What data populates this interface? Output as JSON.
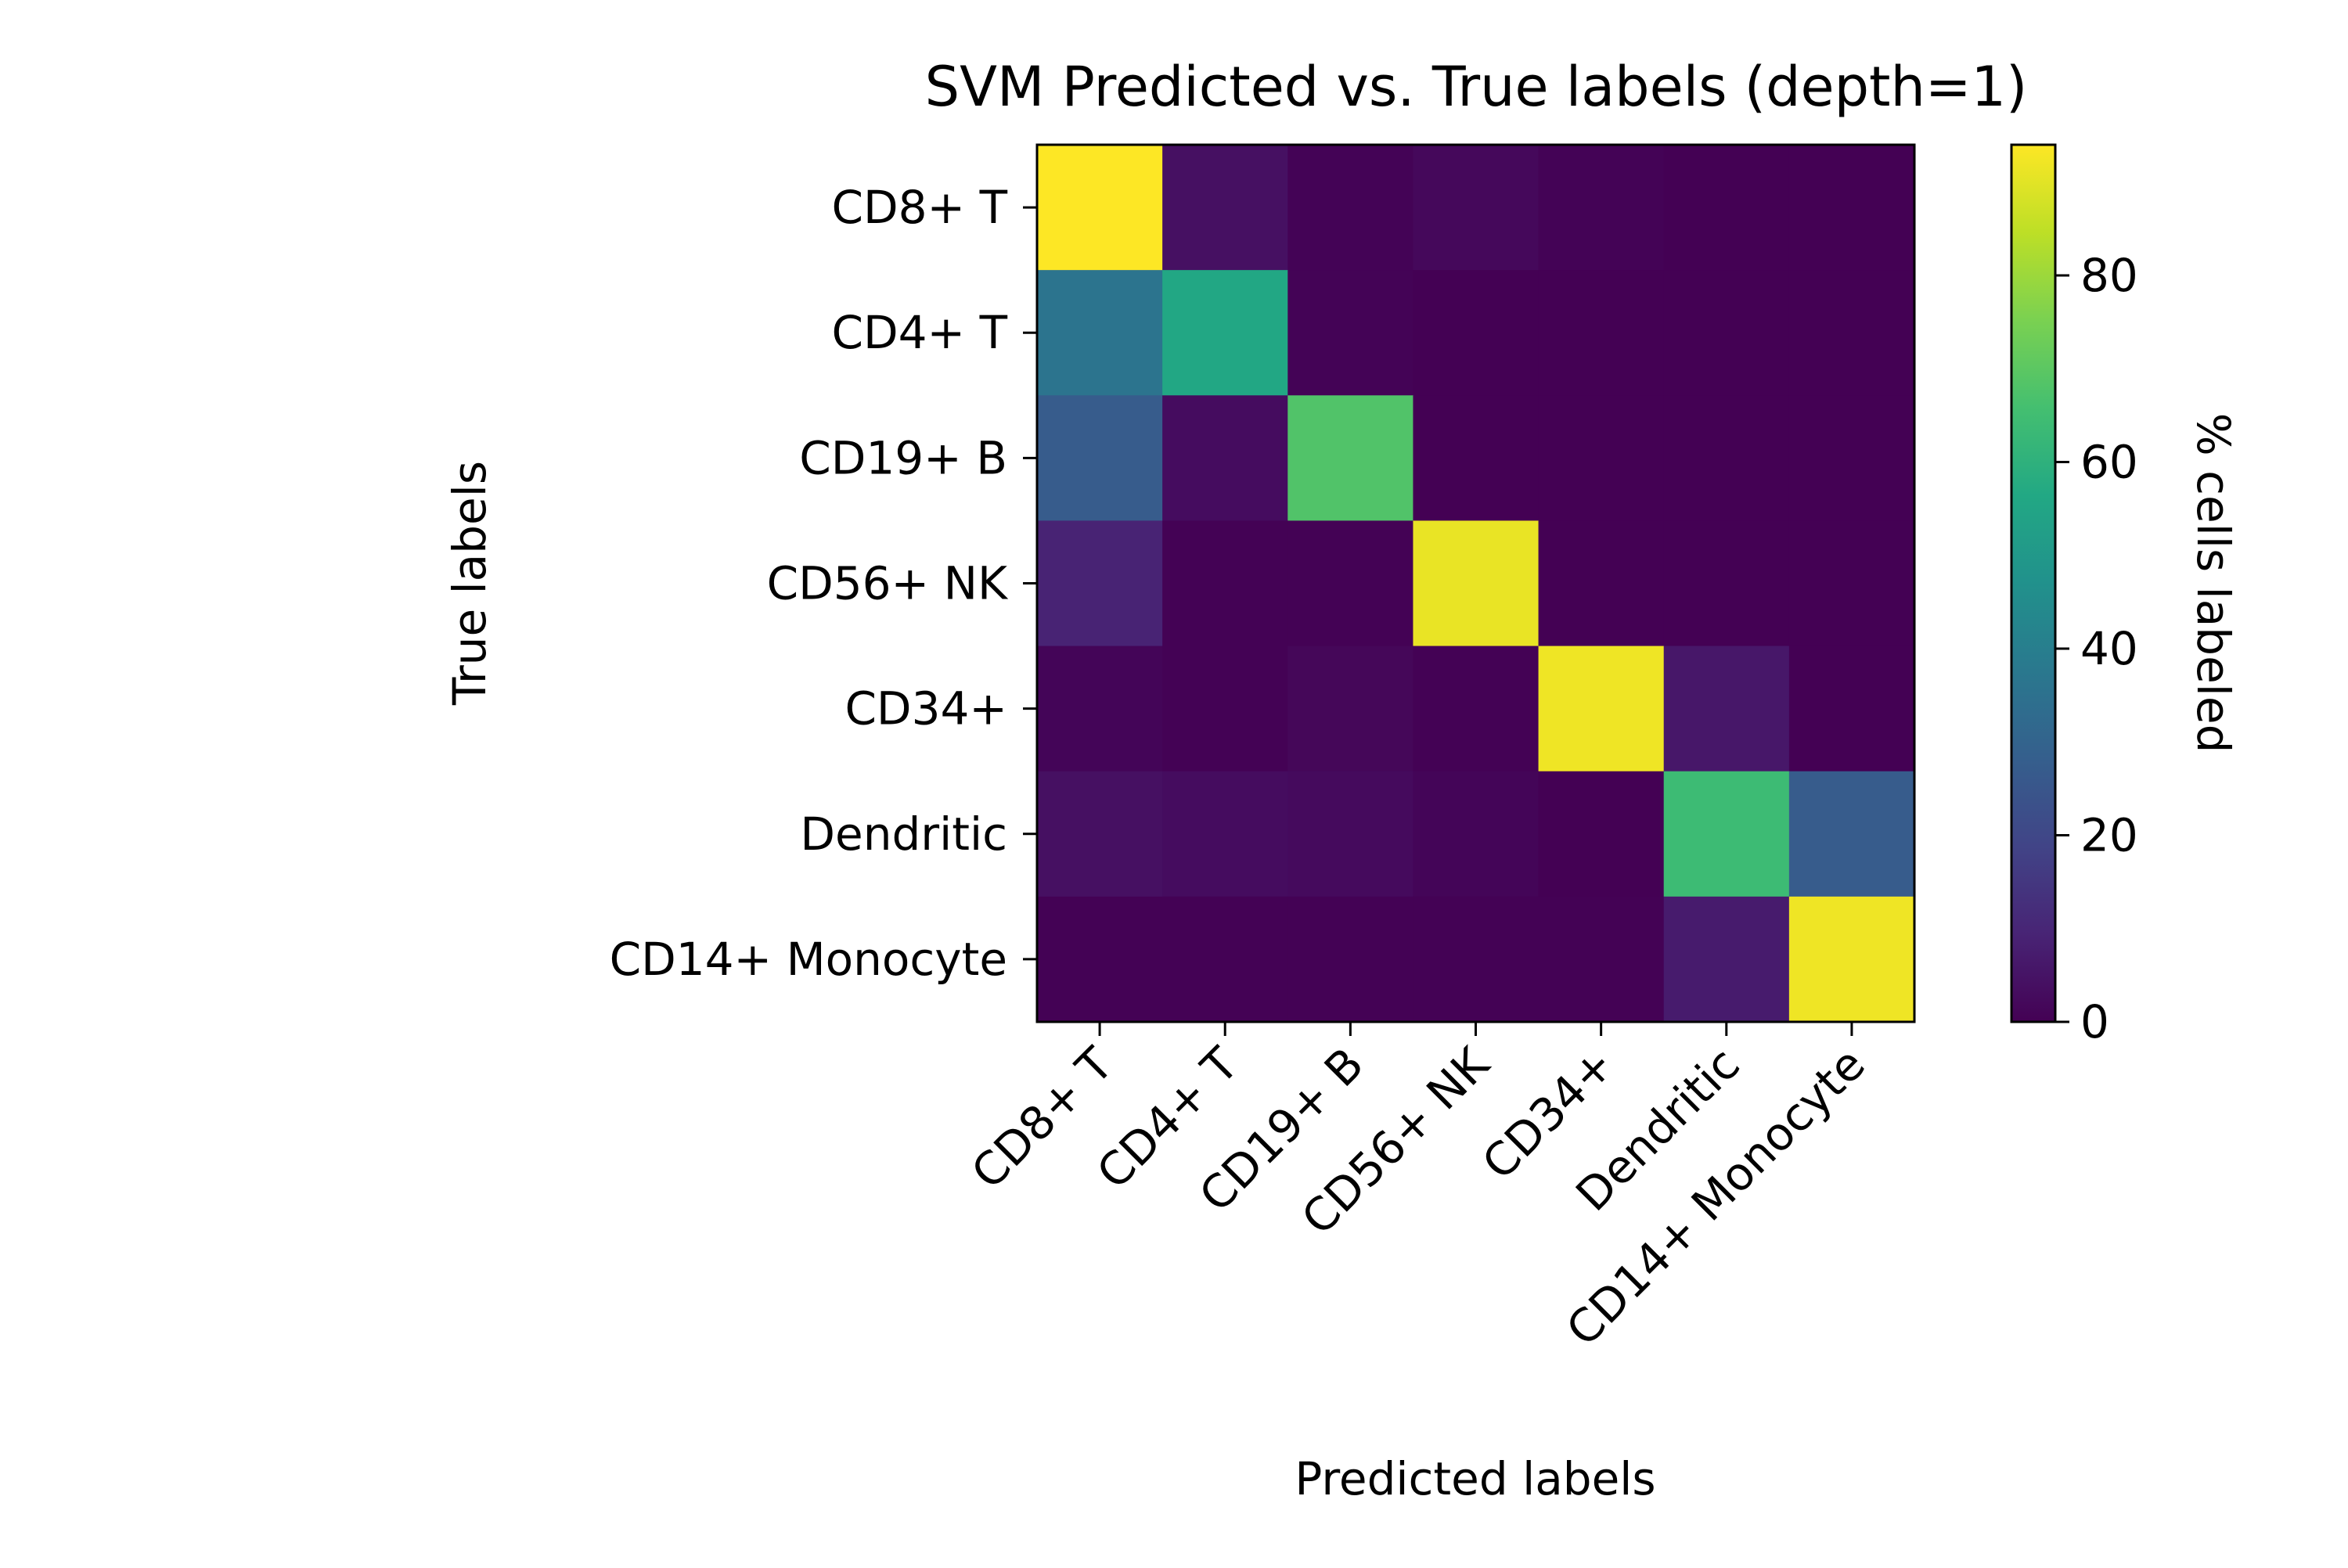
{
  "chart_data": {
    "type": "heatmap",
    "title": "SVM Predicted vs. True labels (depth=1)",
    "xlabel": "Predicted labels",
    "ylabel": "True labels",
    "x_categories": [
      "CD8+ T",
      "CD4+ T",
      "CD19+ B",
      "CD56+ NK",
      "CD34+",
      "Dendritic",
      "CD14+ Monocyte"
    ],
    "y_categories": [
      "CD8+ T",
      "CD4+ T",
      "CD19+ B",
      "CD56+ NK",
      "CD34+",
      "Dendritic",
      "CD14+ Monocyte"
    ],
    "values": [
      [
        94,
        4,
        0.5,
        2,
        0.5,
        0,
        0
      ],
      [
        36,
        56,
        0.5,
        0,
        0,
        0,
        0
      ],
      [
        27,
        3,
        68,
        0,
        0,
        0,
        0
      ],
      [
        9,
        0.3,
        0.3,
        91,
        0,
        0,
        0
      ],
      [
        1,
        0.3,
        1.5,
        0.3,
        92,
        6,
        0
      ],
      [
        4,
        3,
        2.5,
        1,
        0,
        64,
        27
      ],
      [
        0.3,
        0.3,
        0.3,
        0.3,
        0.3,
        7,
        92
      ]
    ],
    "colormap": "viridis",
    "colorbar": {
      "label": "% cells labeled",
      "range": [
        0,
        94
      ],
      "ticks": [
        0,
        20,
        40,
        60,
        80
      ]
    }
  }
}
